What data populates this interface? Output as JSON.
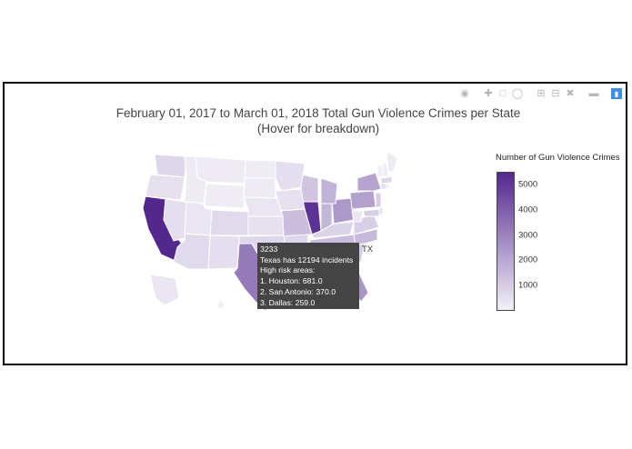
{
  "modebar": {
    "icons": [
      "camera-icon",
      "pan-icon",
      "box-select-icon",
      "lasso-icon",
      "zoom-in-icon",
      "zoom-out-icon",
      "autoscale-icon",
      "reset-axes-icon",
      "hover-closest-icon",
      "plotly-logo-icon"
    ]
  },
  "chart_data": {
    "type": "choropleth",
    "title_line1": "February 01, 2017 to March 01, 2018 Total Gun Violence Crimes per State",
    "title_line2": "(Hover for breakdown)",
    "colorbar": {
      "title": "Number of Gun Violence Crimes",
      "tick_labels": [
        "5000",
        "4000",
        "3000",
        "2000",
        "1000"
      ],
      "ticks": [
        5000,
        4000,
        3000,
        2000,
        1000
      ],
      "range": [
        0,
        5500
      ],
      "color_low": "#f2f0f7",
      "color_high": "#54278f"
    },
    "states": [
      {
        "code": "CA",
        "value": 5500
      },
      {
        "code": "IL",
        "value": 5200
      },
      {
        "code": "TX",
        "value": 3233
      },
      {
        "code": "OH",
        "value": 2400
      },
      {
        "code": "PA",
        "value": 2200
      },
      {
        "code": "NY",
        "value": 2100
      },
      {
        "code": "GA",
        "value": 1800
      },
      {
        "code": "FL",
        "value": 2500
      },
      {
        "code": "MI",
        "value": 1700
      },
      {
        "code": "IN",
        "value": 1600
      },
      {
        "code": "NC",
        "value": 1500
      },
      {
        "code": "TN",
        "value": 1400
      },
      {
        "code": "LA",
        "value": 1500
      },
      {
        "code": "MO",
        "value": 1400
      },
      {
        "code": "WI",
        "value": 1200
      },
      {
        "code": "AL",
        "value": 1100
      },
      {
        "code": "VA",
        "value": 900
      },
      {
        "code": "MD",
        "value": 900
      },
      {
        "code": "NJ",
        "value": 900
      },
      {
        "code": "SC",
        "value": 1000
      },
      {
        "code": "KY",
        "value": 800
      },
      {
        "code": "MA",
        "value": 700
      },
      {
        "code": "MS",
        "value": 800
      },
      {
        "code": "AR",
        "value": 700
      },
      {
        "code": "OK",
        "value": 700
      },
      {
        "code": "CO",
        "value": 600
      },
      {
        "code": "WA",
        "value": 700
      },
      {
        "code": "AZ",
        "value": 600
      },
      {
        "code": "NV",
        "value": 500
      },
      {
        "code": "OR",
        "value": 400
      },
      {
        "code": "MN",
        "value": 500
      },
      {
        "code": "IA",
        "value": 400
      },
      {
        "code": "KS",
        "value": 400
      },
      {
        "code": "NM",
        "value": 500
      },
      {
        "code": "NE",
        "value": 300
      },
      {
        "code": "UT",
        "value": 300
      },
      {
        "code": "CT",
        "value": 500
      },
      {
        "code": "DE",
        "value": 400
      },
      {
        "code": "WV",
        "value": 300
      },
      {
        "code": "ID",
        "value": 150
      },
      {
        "code": "MT",
        "value": 150
      },
      {
        "code": "WY",
        "value": 100
      },
      {
        "code": "ND",
        "value": 100
      },
      {
        "code": "SD",
        "value": 150
      },
      {
        "code": "ME",
        "value": 150
      },
      {
        "code": "NH",
        "value": 100
      },
      {
        "code": "VT",
        "value": 80
      },
      {
        "code": "RI",
        "value": 200
      },
      {
        "code": "AK",
        "value": 250
      },
      {
        "code": "HI",
        "value": 100
      }
    ],
    "hover": {
      "state": "TX",
      "value_label": "3233",
      "state_label": "TX",
      "lines": [
        "Texas has 12194 incidents",
        " High risk areas:",
        "1. Houston: 681.0",
        "2. San Antonio: 370.0",
        "3. Dallas: 259.0"
      ]
    }
  }
}
